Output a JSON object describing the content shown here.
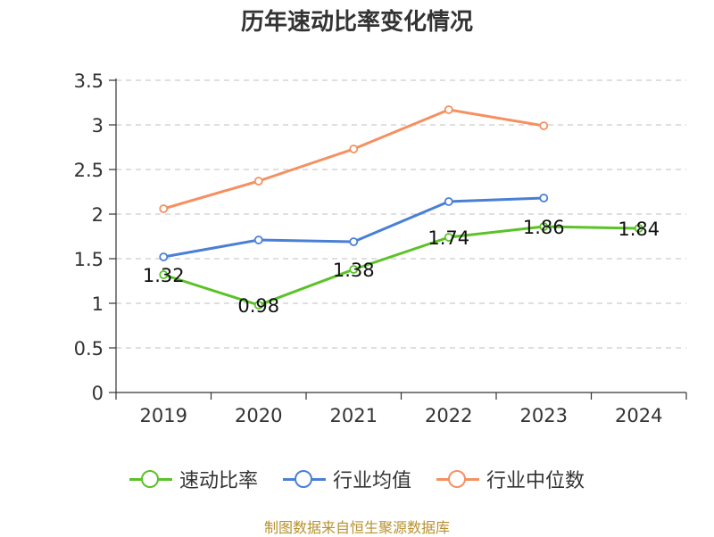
{
  "chart_data": {
    "type": "line",
    "title": "历年速动比率变化情况",
    "categories": [
      "2019",
      "2020",
      "2021",
      "2022",
      "2023",
      "2024"
    ],
    "yticks": [
      "0",
      "0.5",
      "1",
      "1.5",
      "2",
      "2.5",
      "3",
      "3.5"
    ],
    "ylim": [
      0,
      3.5
    ],
    "grid": true,
    "legend_position": "bottom",
    "series": [
      {
        "name": "速动比率",
        "color": "#5bc227",
        "values": [
          1.32,
          0.98,
          1.38,
          1.74,
          1.86,
          1.84
        ],
        "labels": [
          "1.32",
          "0.98",
          "1.38",
          "1.74",
          "1.86",
          "1.84"
        ]
      },
      {
        "name": "行业均值",
        "color": "#4a7fd6",
        "values": [
          1.52,
          1.71,
          1.69,
          2.14,
          2.18,
          null
        ]
      },
      {
        "name": "行业中位数",
        "color": "#f59060",
        "values": [
          2.06,
          2.37,
          2.73,
          3.17,
          2.99,
          null
        ]
      }
    ]
  },
  "source": "制图数据来自恒生聚源数据库"
}
